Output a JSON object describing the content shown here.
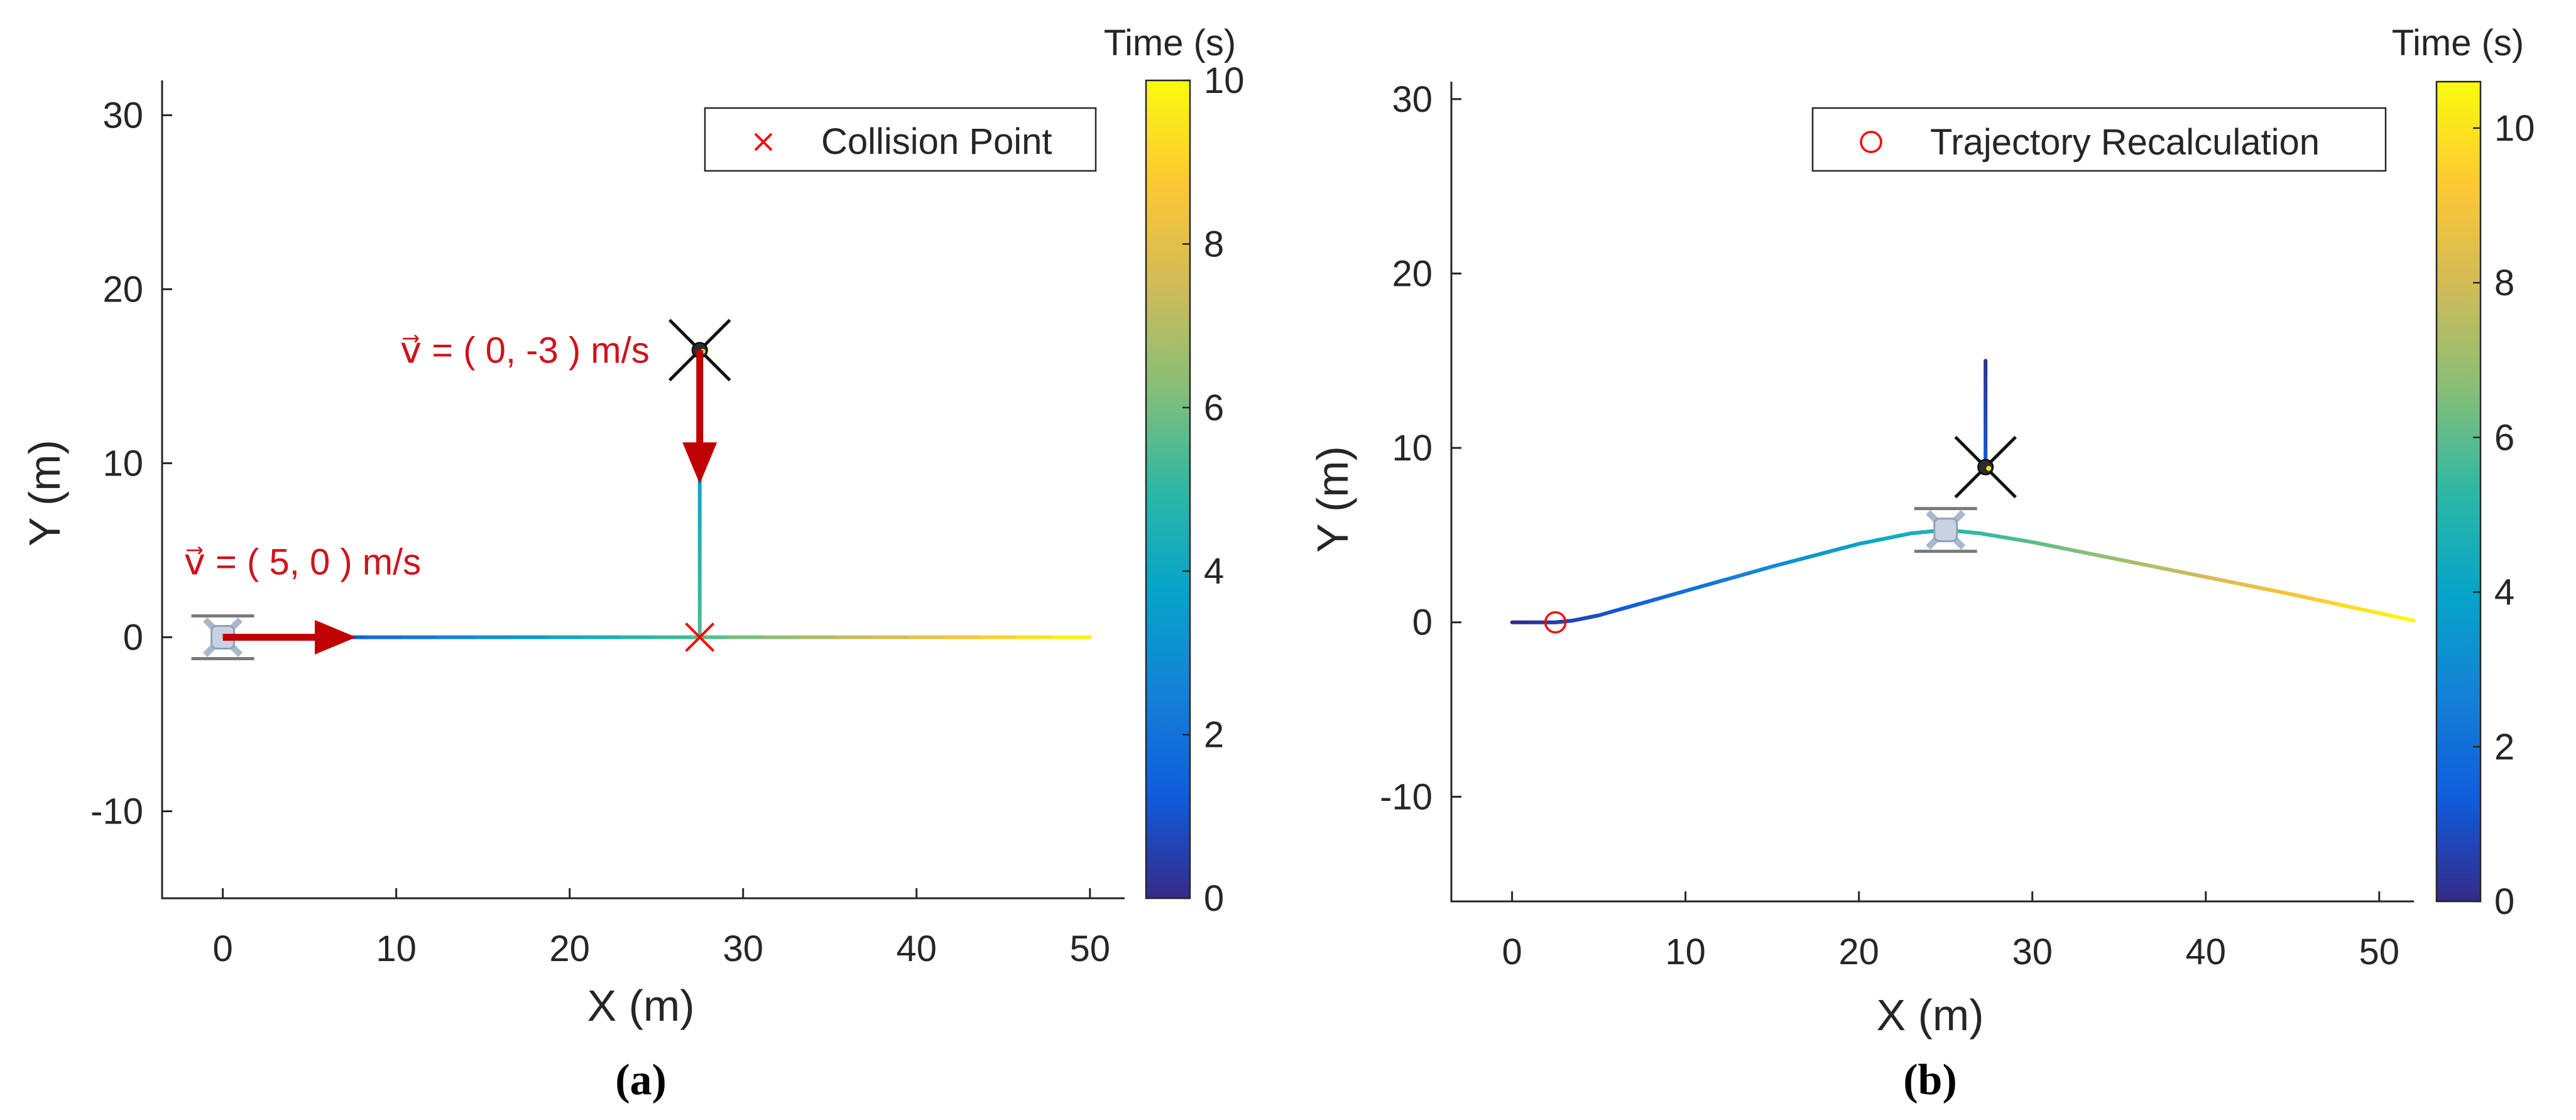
{
  "chart_data": [
    {
      "type": "line",
      "panel_label": "(a)",
      "xlabel": "X (m)",
      "ylabel": "Y (m)",
      "xlim": [
        -3.5,
        52
      ],
      "ylim": [
        -15,
        32
      ],
      "xticks": [
        0,
        10,
        20,
        30,
        40,
        50
      ],
      "yticks": [
        -10,
        0,
        10,
        20,
        30
      ],
      "xtick_labels": [
        "0",
        "10",
        "20",
        "30",
        "40",
        "50"
      ],
      "ytick_labels": [
        "-10",
        "0",
        "10",
        "20",
        "30"
      ],
      "colorbar": {
        "title": "Time (s)",
        "range": [
          0,
          10
        ],
        "ticks": [
          0,
          2,
          4,
          6,
          8,
          10
        ],
        "tick_labels": [
          "0",
          "2",
          "4",
          "6",
          "8",
          "10"
        ],
        "colormap": "parula"
      },
      "legend": {
        "location": "top-right",
        "entries": [
          {
            "label": "Collision Point",
            "marker": "x",
            "color": "#ff0000"
          }
        ]
      },
      "series": [
        {
          "name": "Drone 1 trajectory",
          "x": [
            0,
            50
          ],
          "y": [
            0,
            0
          ],
          "t": [
            0,
            10
          ]
        },
        {
          "name": "Drone 2 trajectory",
          "x": [
            27.5,
            27.5
          ],
          "y": [
            11,
            0
          ],
          "t": [
            3.6,
            5.5
          ]
        }
      ],
      "markers": [
        {
          "name": "Collision Point",
          "x": 27.5,
          "y": 0
        }
      ],
      "drones": [
        {
          "name": "drone-1",
          "x": 0,
          "y": 0
        },
        {
          "name": "drone-2",
          "x": 27.5,
          "y": 16.5
        }
      ],
      "velocity_arrows": [
        {
          "label": "v⃗ = ( 5, 0 ) m/s",
          "x": 0,
          "y": 0,
          "dx": 5.5,
          "dy": 0
        },
        {
          "label": "v⃗ = ( 0, -3 ) m/s",
          "x": 27.5,
          "y": 16.5,
          "dx": 0,
          "dy": -5.5
        }
      ]
    },
    {
      "type": "line",
      "panel_label": "(b)",
      "xlabel": "X (m)",
      "ylabel": "Y (m)",
      "xlim": [
        -3.5,
        52
      ],
      "ylim": [
        -16,
        31
      ],
      "xticks": [
        0,
        10,
        20,
        30,
        40,
        50
      ],
      "yticks": [
        -10,
        0,
        10,
        20,
        30
      ],
      "xtick_labels": [
        "0",
        "10",
        "20",
        "30",
        "40",
        "50"
      ],
      "ytick_labels": [
        "-10",
        "0",
        "10",
        "20",
        "30"
      ],
      "colorbar": {
        "title": "Time (s)",
        "range": [
          0,
          10.6
        ],
        "ticks": [
          0,
          2,
          4,
          6,
          8,
          10
        ],
        "tick_labels": [
          "0",
          "2",
          "4",
          "6",
          "8",
          "10"
        ],
        "colormap": "parula"
      },
      "legend": {
        "location": "top-right",
        "entries": [
          {
            "label": "Trajectory Recalculation",
            "marker": "o",
            "color": "#ff0000"
          }
        ]
      },
      "series": [
        {
          "name": "Drone 1 trajectory",
          "x": [
            0,
            2.5,
            3.5,
            5,
            10,
            15,
            20,
            23,
            25,
            27,
            30,
            35,
            40,
            45,
            52
          ],
          "y": [
            0,
            0,
            0.1,
            0.4,
            1.8,
            3.2,
            4.5,
            5.1,
            5.3,
            5.1,
            4.6,
            3.6,
            2.6,
            1.6,
            0.1
          ],
          "t": [
            0,
            0.5,
            0.7,
            1.0,
            2.0,
            3.0,
            4.0,
            4.6,
            5.0,
            5.4,
            6.0,
            7.0,
            8.0,
            9.0,
            10.6
          ]
        },
        {
          "name": "Drone 2 trajectory",
          "x": [
            27.3,
            27.3
          ],
          "y": [
            15,
            9.2
          ],
          "t": [
            0.2,
            1.2
          ]
        }
      ],
      "markers": [
        {
          "name": "Trajectory Recalculation",
          "x": 2.5,
          "y": 0
        }
      ],
      "drones": [
        {
          "name": "drone-1",
          "x": 25,
          "y": 5.3
        },
        {
          "name": "drone-2",
          "x": 27.3,
          "y": 8.9
        }
      ],
      "velocity_arrows": []
    }
  ],
  "colors": {
    "arrow": "#c00000",
    "annotation": "#d0121c",
    "marker": "#ff0000",
    "axis": "#262626"
  }
}
